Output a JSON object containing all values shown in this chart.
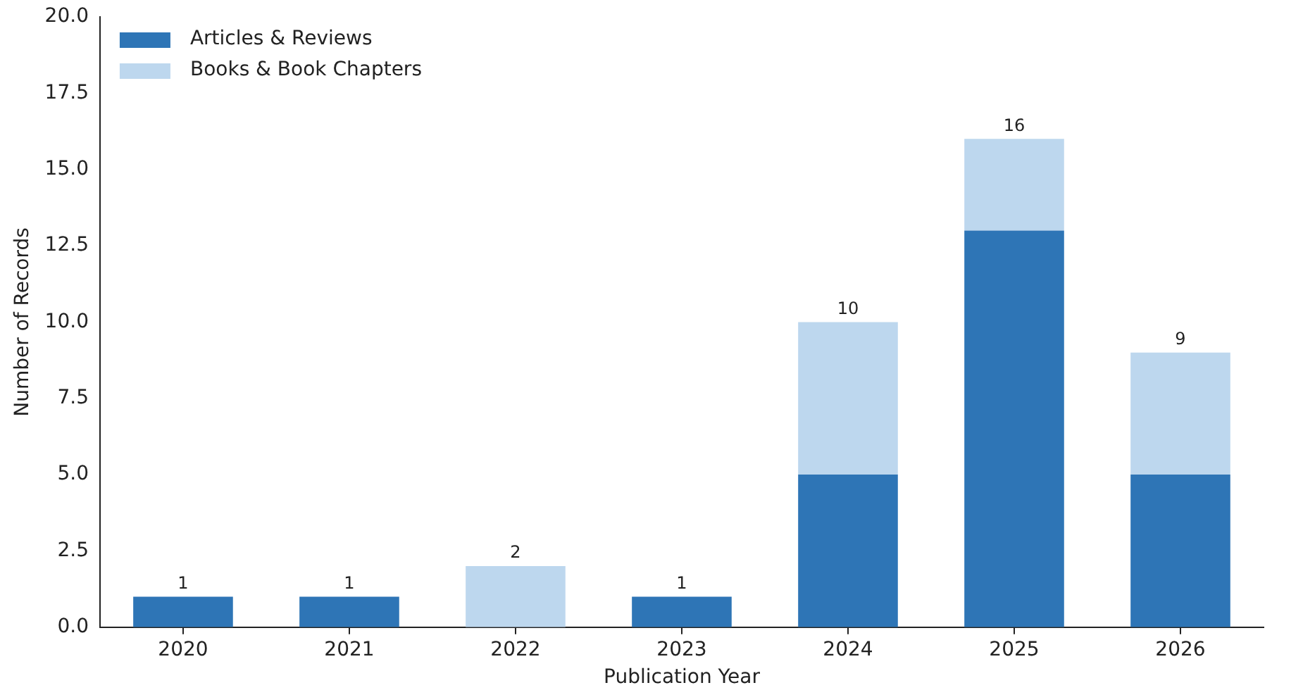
{
  "chart_data": {
    "type": "bar",
    "stacked": true,
    "xlabel": "Publication Year",
    "ylabel": "Number of Records",
    "categories": [
      "2020",
      "2021",
      "2022",
      "2023",
      "2024",
      "2025",
      "2026"
    ],
    "series": [
      {
        "name": "Articles & Reviews",
        "color": "#2e75b6",
        "values": [
          1,
          1,
          0,
          1,
          5,
          13,
          5
        ]
      },
      {
        "name": "Books & Book Chapters",
        "color": "#bdd7ee",
        "values": [
          0,
          0,
          2,
          0,
          5,
          3,
          4
        ]
      }
    ],
    "totals": [
      "1",
      "1",
      "2",
      "1",
      "10",
      "16",
      "9"
    ],
    "ylim": [
      0,
      20
    ],
    "yticks": [
      {
        "value": 0,
        "label": "0.0"
      },
      {
        "value": 2.5,
        "label": "2.5"
      },
      {
        "value": 5,
        "label": "5.0"
      },
      {
        "value": 7.5,
        "label": "7.5"
      },
      {
        "value": 10,
        "label": "10.0"
      },
      {
        "value": 12.5,
        "label": "12.5"
      },
      {
        "value": 15,
        "label": "15.0"
      },
      {
        "value": 17.5,
        "label": "17.5"
      },
      {
        "value": 20,
        "label": "20.0"
      }
    ],
    "grid": false,
    "legend": "top left"
  }
}
